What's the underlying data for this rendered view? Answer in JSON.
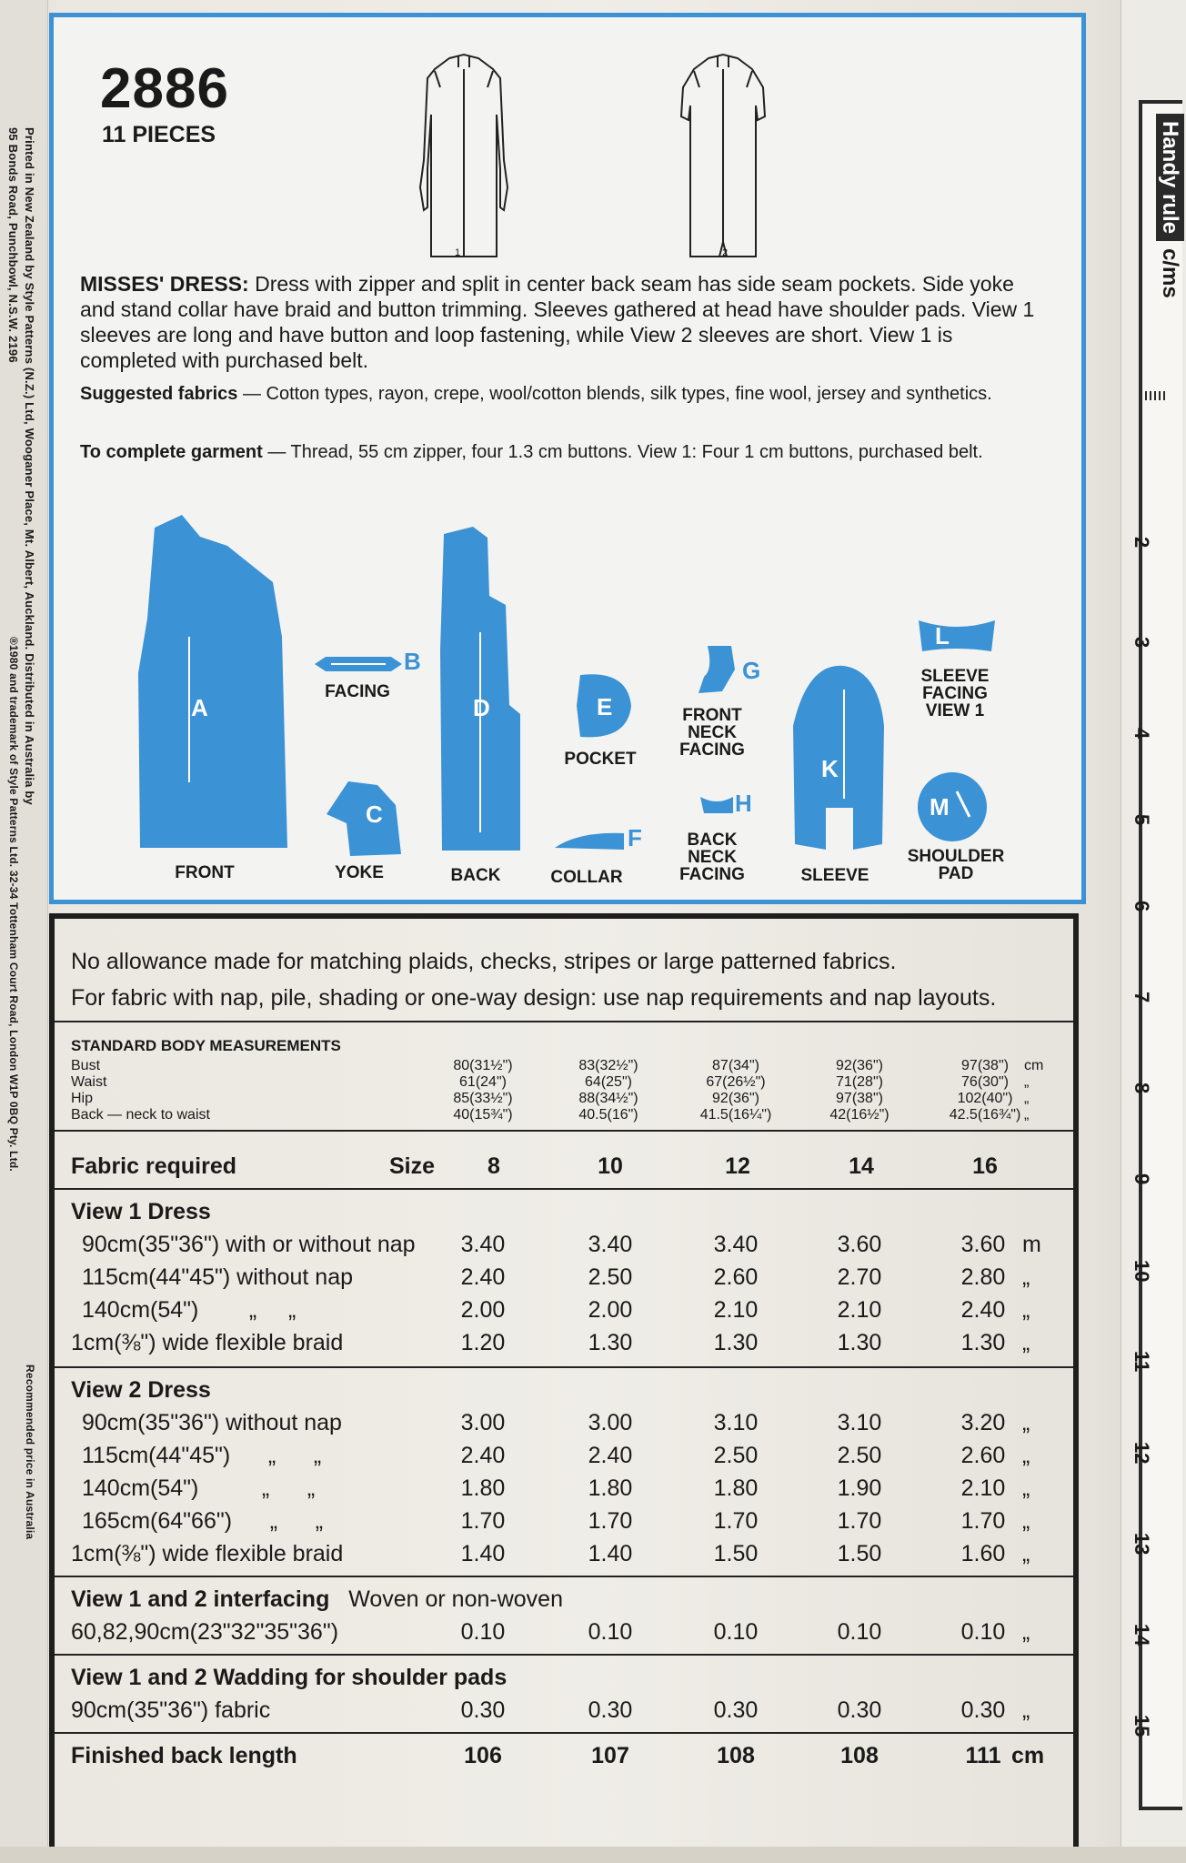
{
  "side_text": {
    "printer": "Printed in New Zealand by Style Patterns (N.Z.) Ltd, Wooganer Place, Mt. Albert, Auckland. Distributed in Australia by",
    "printer2": "95 Bonds Road, Punchbowl, N.S.W. 2196",
    "trademark": "®1980 and trademark of Style Patterns Ltd. 32-34 Tottenham Court Road, London W1P 0BQ Pty. Ltd.",
    "price": "Recommended price in Australia"
  },
  "rule": {
    "title": "Handy rule",
    "unit": "c/ms",
    "numbers": [
      "2",
      "3",
      "4",
      "5",
      "6",
      "7",
      "8",
      "9",
      "10",
      "11",
      "12",
      "13",
      "14",
      "15"
    ]
  },
  "header": {
    "pattern_number": "2886",
    "pieces": "11 PIECES"
  },
  "views": {
    "view1": "1",
    "view2": "2"
  },
  "description": {
    "title": "MISSES' DRESS:",
    "text": "Dress with zipper and split in center back seam has side seam pockets. Side yoke and stand collar have braid and button trimming. Sleeves gathered at head have shoulder pads. View 1 sleeves are long and have button and loop fastening, while View 2 sleeves are short. View 1 is completed with purchased belt."
  },
  "fabrics": {
    "label": "Suggested fabrics",
    "text": " — Cotton types, rayon, crepe, wool/cotton blends, silk types, fine wool, jersey and synthetics."
  },
  "complete": {
    "label": "To complete garment",
    "text": " — Thread, 55 cm zipper, four 1.3 cm buttons. View 1: Four 1 cm buttons, purchased belt."
  },
  "pieces": {
    "A": {
      "letter": "A",
      "label": "FRONT"
    },
    "B": {
      "letter": "B",
      "label": "FACING"
    },
    "C": {
      "letter": "C",
      "label": "YOKE"
    },
    "D": {
      "letter": "D",
      "label": "BACK"
    },
    "E": {
      "letter": "E",
      "label": "POCKET"
    },
    "F": {
      "letter": "F",
      "label": "COLLAR"
    },
    "G": {
      "letter": "G",
      "label": "FRONT NECK FACING"
    },
    "H": {
      "letter": "H",
      "label": "BACK NECK FACING"
    },
    "K": {
      "letter": "K",
      "label": "SLEEVE"
    },
    "L": {
      "letter": "L",
      "label": "SLEEVE FACING VIEW 1"
    },
    "M": {
      "letter": "M",
      "label": "SHOULDER PAD"
    }
  },
  "colors": {
    "pattern_blue": "#3b92d4",
    "ink": "#1a1a1a"
  },
  "notes": {
    "line1": "No allowance made for matching plaids, checks, stripes or large patterned fabrics.",
    "line2": "For fabric with nap, pile, shading or one-way design: use nap requirements and nap layouts."
  },
  "measurements": {
    "title": "STANDARD BODY MEASUREMENTS",
    "unit": "cm",
    "rows": [
      {
        "label": "Bust",
        "values": [
          "80(31½\")",
          "83(32½\")",
          "87(34\")",
          "92(36\")",
          "97(38\")"
        ],
        "unit": "cm"
      },
      {
        "label": "Waist",
        "values": [
          "61(24\")",
          "64(25\")",
          "67(26½\")",
          "71(28\")",
          "76(30\")"
        ],
        "unit": "„"
      },
      {
        "label": "Hip",
        "values": [
          "85(33½\")",
          "88(34½\")",
          "92(36\")",
          "97(38\")",
          "102(40\")"
        ],
        "unit": "„"
      },
      {
        "label": "Back — neck to waist",
        "values": [
          "40(15¾\")",
          "40.5(16\")",
          "41.5(16¼\")",
          "42(16½\")",
          "42.5(16¾\")"
        ],
        "unit": "„"
      }
    ]
  },
  "fabric_table": {
    "header": {
      "label": "Fabric required",
      "size_label": "Size",
      "sizes": [
        "8",
        "10",
        "12",
        "14",
        "16"
      ]
    },
    "view1": {
      "title": "View 1   Dress",
      "rows": [
        {
          "label": "90cm(35\"36\") with or without nap",
          "values": [
            "3.40",
            "3.40",
            "3.40",
            "3.60",
            "3.60"
          ],
          "unit": "m"
        },
        {
          "label": "115cm(44\"45\") without nap",
          "values": [
            "2.40",
            "2.50",
            "2.60",
            "2.70",
            "2.80"
          ],
          "unit": "„"
        },
        {
          "label": "140cm(54\")        „     „",
          "values": [
            "2.00",
            "2.00",
            "2.10",
            "2.10",
            "2.40"
          ],
          "unit": "„"
        },
        {
          "label": "1cm(⅜\") wide flexible braid",
          "values": [
            "1.20",
            "1.30",
            "1.30",
            "1.30",
            "1.30"
          ],
          "unit": "„"
        }
      ]
    },
    "view2": {
      "title": "View 2   Dress",
      "rows": [
        {
          "label": "90cm(35\"36\") without nap",
          "values": [
            "3.00",
            "3.00",
            "3.10",
            "3.10",
            "3.20"
          ],
          "unit": "„"
        },
        {
          "label": "115cm(44\"45\")      „      „",
          "values": [
            "2.40",
            "2.40",
            "2.50",
            "2.50",
            "2.60"
          ],
          "unit": "„"
        },
        {
          "label": "140cm(54\")          „      „",
          "values": [
            "1.80",
            "1.80",
            "1.80",
            "1.90",
            "2.10"
          ],
          "unit": "„"
        },
        {
          "label": "165cm(64\"66\")      „      „",
          "values": [
            "1.70",
            "1.70",
            "1.70",
            "1.70",
            "1.70"
          ],
          "unit": "„"
        },
        {
          "label": "1cm(⅜\") wide flexible braid",
          "values": [
            "1.40",
            "1.40",
            "1.50",
            "1.50",
            "1.60"
          ],
          "unit": "„"
        }
      ]
    },
    "interfacing": {
      "title": "View 1 and 2 interfacing",
      "subtitle": "Woven or non-woven",
      "row": {
        "label": "60,82,90cm(23\"32\"35\"36\")",
        "values": [
          "0.10",
          "0.10",
          "0.10",
          "0.10",
          "0.10"
        ],
        "unit": "„"
      }
    },
    "wadding": {
      "title": "View 1 and 2   Wadding for shoulder pads",
      "row": {
        "label": "90cm(35\"36\") fabric",
        "values": [
          "0.30",
          "0.30",
          "0.30",
          "0.30",
          "0.30"
        ],
        "unit": "„"
      }
    },
    "finished": {
      "label": "Finished back length",
      "values": [
        "106",
        "107",
        "108",
        "108",
        "111"
      ],
      "unit": "cm"
    }
  }
}
